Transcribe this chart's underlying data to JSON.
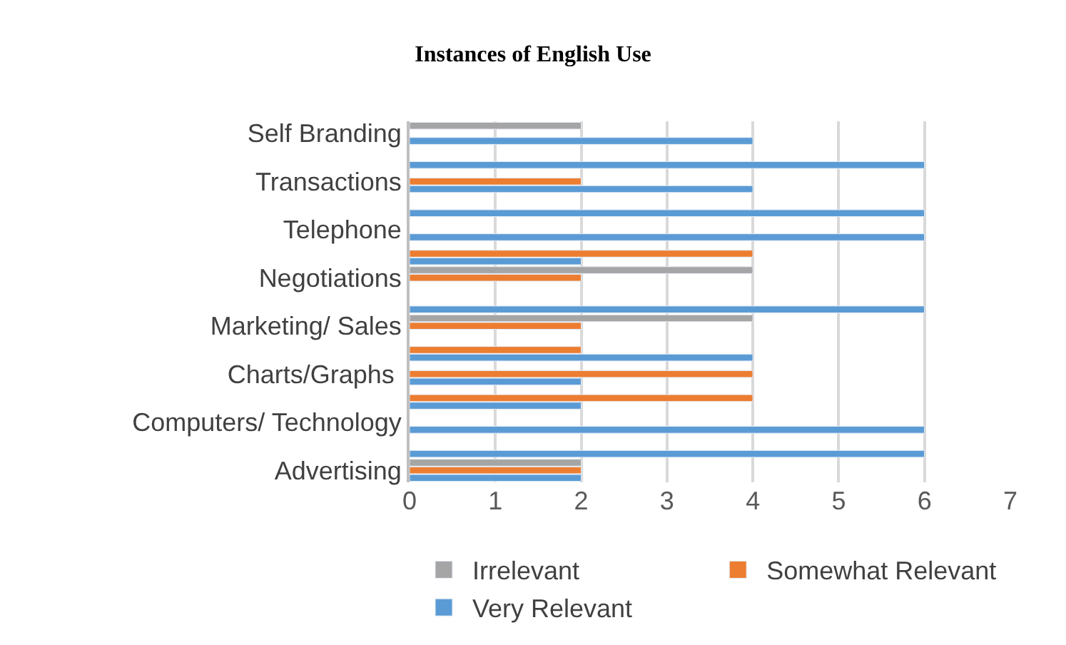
{
  "chart_data": {
    "type": "bar",
    "orientation": "horizontal",
    "title": "Instances of English Use",
    "categories": [
      "Self Branding",
      null,
      "Transactions",
      null,
      "Telephone",
      null,
      "Negotiations",
      null,
      "Marketing/ Sales",
      null,
      "Charts/Graphs ",
      null,
      "Computers/ Technology",
      null,
      "Advertising"
    ],
    "series": [
      {
        "name": "Irrelevant",
        "color": "#a5a5a5",
        "values": [
          2,
          null,
          null,
          null,
          null,
          null,
          4,
          null,
          4,
          null,
          null,
          null,
          null,
          null,
          2
        ]
      },
      {
        "name": "Somewhat Relevant",
        "color": "#ed7d31",
        "values": [
          null,
          null,
          2,
          null,
          null,
          4,
          2,
          null,
          2,
          2,
          4,
          4,
          null,
          null,
          2
        ]
      },
      {
        "name": "Very Relevant",
        "color": "#5b9bd5",
        "values": [
          4,
          6,
          4,
          6,
          6,
          2,
          null,
          6,
          null,
          4,
          2,
          2,
          6,
          6,
          2
        ]
      }
    ],
    "xlim": [
      0,
      7
    ],
    "xticks": [
      0,
      1,
      2,
      3,
      4,
      5,
      6,
      7
    ],
    "grid": "x",
    "legend": "bottom"
  }
}
